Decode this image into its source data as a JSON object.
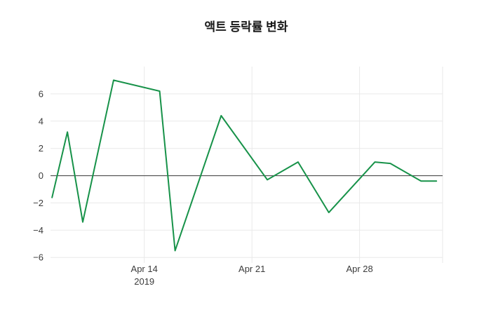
{
  "chart_data": {
    "type": "line",
    "title": "액트 등락률 변화",
    "xlabel": "",
    "ylabel": "",
    "grid": true,
    "legend_position": "none",
    "series": [
      {
        "name": "액트 등락률",
        "color": "#179249",
        "points": [
          {
            "date": "2019-04-08",
            "day": 0,
            "value": -1.6
          },
          {
            "date": "2019-04-09",
            "day": 1,
            "value": 3.2
          },
          {
            "date": "2019-04-10",
            "day": 2,
            "value": -3.4
          },
          {
            "date": "2019-04-12",
            "day": 4,
            "value": 7.0
          },
          {
            "date": "2019-04-15",
            "day": 7,
            "value": 6.2
          },
          {
            "date": "2019-04-16",
            "day": 8,
            "value": -5.5
          },
          {
            "date": "2019-04-19",
            "day": 11,
            "value": 4.4
          },
          {
            "date": "2019-04-22",
            "day": 14,
            "value": -0.3
          },
          {
            "date": "2019-04-24",
            "day": 16,
            "value": 1.0
          },
          {
            "date": "2019-04-26",
            "day": 18,
            "value": -2.7
          },
          {
            "date": "2019-04-29",
            "day": 21,
            "value": 1.0
          },
          {
            "date": "2019-04-30",
            "day": 22,
            "value": 0.9
          },
          {
            "date": "2019-05-02",
            "day": 24,
            "value": -0.4
          },
          {
            "date": "2019-05-03",
            "day": 25,
            "value": -0.4
          }
        ]
      }
    ],
    "x_ticks": [
      {
        "day": 6,
        "label": "Apr 14",
        "sublabel": "2019"
      },
      {
        "day": 13,
        "label": "Apr 21",
        "sublabel": ""
      },
      {
        "day": 20,
        "label": "Apr 28",
        "sublabel": ""
      }
    ],
    "y_ticks": [
      {
        "value": -6,
        "label": "−6"
      },
      {
        "value": -4,
        "label": "−4"
      },
      {
        "value": -2,
        "label": "−2"
      },
      {
        "value": 0,
        "label": "0"
      },
      {
        "value": 2,
        "label": "2"
      },
      {
        "value": 4,
        "label": "4"
      },
      {
        "value": 6,
        "label": "6"
      }
    ],
    "ylim": [
      -6.4,
      8.0
    ],
    "xlim_days": [
      -0.1,
      25.4
    ],
    "zero_line": true,
    "colors": {
      "line": "#179249",
      "grid": "#e9e9e9",
      "zero_line": "#3a3a3a",
      "tick_label": "#3b3b3b",
      "title": "#1a1a1a",
      "background": "#ffffff"
    }
  }
}
